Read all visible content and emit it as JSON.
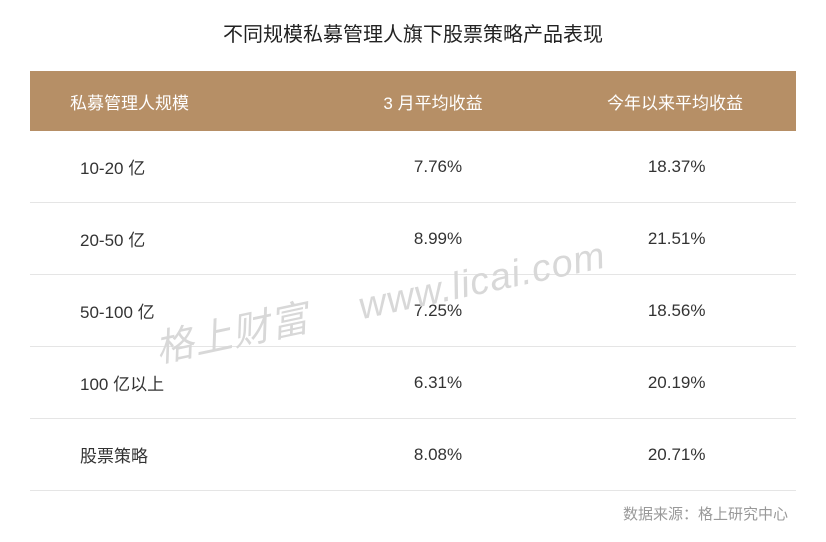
{
  "title": "不同规模私募管理人旗下股票策略产品表现",
  "table": {
    "type": "table",
    "header_bg_color": "#b68f66",
    "header_text_color": "#ffffff",
    "row_border_color": "#e5e5e5",
    "text_color": "#333333",
    "background_color": "#ffffff",
    "header_fontsize": 17,
    "cell_fontsize": 17,
    "columns": [
      {
        "label": "私募管理人规模",
        "align": "left"
      },
      {
        "label": "3 月平均收益",
        "align": "center"
      },
      {
        "label": "今年以来平均收益",
        "align": "center"
      }
    ],
    "rows": [
      {
        "c0": "10-20 亿",
        "c1": "7.76%",
        "c2": "18.37%"
      },
      {
        "c0": "20-50 亿",
        "c1": "8.99%",
        "c2": "21.51%"
      },
      {
        "c0": "50-100 亿",
        "c1": "7.25%",
        "c2": "18.56%"
      },
      {
        "c0": "100 亿以上",
        "c1": "6.31%",
        "c2": "20.19%"
      },
      {
        "c0": "股票策略",
        "c1": "8.08%",
        "c2": "20.71%"
      }
    ]
  },
  "watermark": {
    "left": "格上财富",
    "right": "www.licai.com",
    "color": "#d8d8d8",
    "fontsize": 38,
    "rotation_deg": -12
  },
  "source": "数据来源：格上研究中心",
  "source_color": "#999999"
}
